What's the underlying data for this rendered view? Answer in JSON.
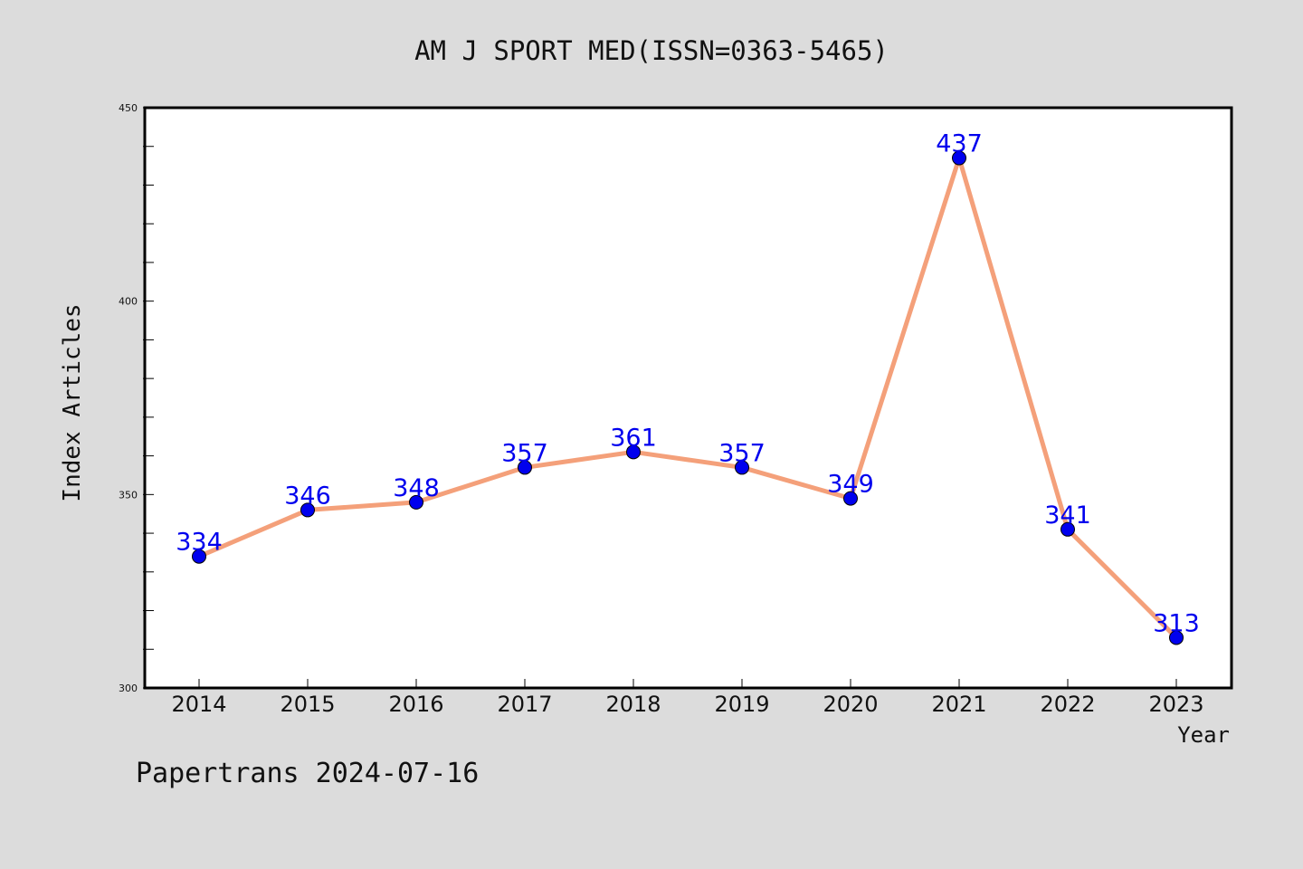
{
  "chart_data": {
    "type": "line",
    "title": "AM J SPORT MED(ISSN=0363-5465)",
    "xlabel": "Year",
    "ylabel": "Index Articles",
    "categories": [
      "2014",
      "2015",
      "2016",
      "2017",
      "2018",
      "2019",
      "2020",
      "2021",
      "2022",
      "2023"
    ],
    "values": [
      334,
      346,
      348,
      357,
      361,
      357,
      349,
      437,
      341,
      313
    ],
    "ylim": [
      300,
      450
    ],
    "yticks": [
      "300",
      "350",
      "400",
      "450"
    ],
    "grid": false,
    "legend": "none",
    "line_color": "#f4a07a",
    "marker_color": "#0000ee",
    "label_color": "#0000ee"
  },
  "footer": {
    "text": "Papertrans 2024-07-16"
  }
}
